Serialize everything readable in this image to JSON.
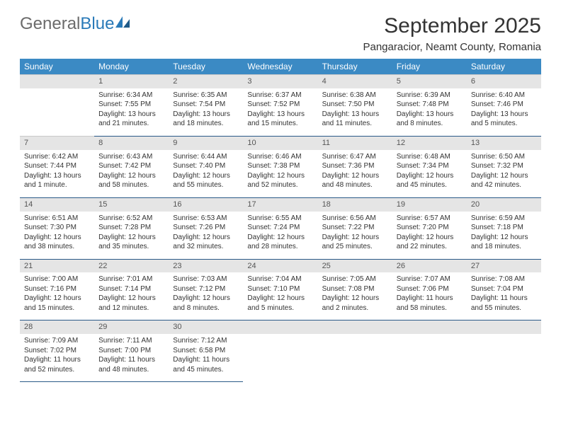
{
  "logo": {
    "part1": "General",
    "part2": "Blue"
  },
  "title": "September 2025",
  "location": "Pangaracior, Neamt County, Romania",
  "colors": {
    "header_bg": "#3b8ac4",
    "header_text": "#ffffff",
    "daynum_bg": "#e5e5e5",
    "border": "#2a5a88",
    "logo_gray": "#6b6b6b",
    "logo_blue": "#2a7ab8"
  },
  "day_headers": [
    "Sunday",
    "Monday",
    "Tuesday",
    "Wednesday",
    "Thursday",
    "Friday",
    "Saturday"
  ],
  "weeks": [
    {
      "nums": [
        "",
        "1",
        "2",
        "3",
        "4",
        "5",
        "6"
      ],
      "cells": [
        [],
        [
          "Sunrise: 6:34 AM",
          "Sunset: 7:55 PM",
          "Daylight: 13 hours",
          "and 21 minutes."
        ],
        [
          "Sunrise: 6:35 AM",
          "Sunset: 7:54 PM",
          "Daylight: 13 hours",
          "and 18 minutes."
        ],
        [
          "Sunrise: 6:37 AM",
          "Sunset: 7:52 PM",
          "Daylight: 13 hours",
          "and 15 minutes."
        ],
        [
          "Sunrise: 6:38 AM",
          "Sunset: 7:50 PM",
          "Daylight: 13 hours",
          "and 11 minutes."
        ],
        [
          "Sunrise: 6:39 AM",
          "Sunset: 7:48 PM",
          "Daylight: 13 hours",
          "and 8 minutes."
        ],
        [
          "Sunrise: 6:40 AM",
          "Sunset: 7:46 PM",
          "Daylight: 13 hours",
          "and 5 minutes."
        ]
      ]
    },
    {
      "nums": [
        "7",
        "8",
        "9",
        "10",
        "11",
        "12",
        "13"
      ],
      "cells": [
        [
          "Sunrise: 6:42 AM",
          "Sunset: 7:44 PM",
          "Daylight: 13 hours",
          "and 1 minute."
        ],
        [
          "Sunrise: 6:43 AM",
          "Sunset: 7:42 PM",
          "Daylight: 12 hours",
          "and 58 minutes."
        ],
        [
          "Sunrise: 6:44 AM",
          "Sunset: 7:40 PM",
          "Daylight: 12 hours",
          "and 55 minutes."
        ],
        [
          "Sunrise: 6:46 AM",
          "Sunset: 7:38 PM",
          "Daylight: 12 hours",
          "and 52 minutes."
        ],
        [
          "Sunrise: 6:47 AM",
          "Sunset: 7:36 PM",
          "Daylight: 12 hours",
          "and 48 minutes."
        ],
        [
          "Sunrise: 6:48 AM",
          "Sunset: 7:34 PM",
          "Daylight: 12 hours",
          "and 45 minutes."
        ],
        [
          "Sunrise: 6:50 AM",
          "Sunset: 7:32 PM",
          "Daylight: 12 hours",
          "and 42 minutes."
        ]
      ]
    },
    {
      "nums": [
        "14",
        "15",
        "16",
        "17",
        "18",
        "19",
        "20"
      ],
      "cells": [
        [
          "Sunrise: 6:51 AM",
          "Sunset: 7:30 PM",
          "Daylight: 12 hours",
          "and 38 minutes."
        ],
        [
          "Sunrise: 6:52 AM",
          "Sunset: 7:28 PM",
          "Daylight: 12 hours",
          "and 35 minutes."
        ],
        [
          "Sunrise: 6:53 AM",
          "Sunset: 7:26 PM",
          "Daylight: 12 hours",
          "and 32 minutes."
        ],
        [
          "Sunrise: 6:55 AM",
          "Sunset: 7:24 PM",
          "Daylight: 12 hours",
          "and 28 minutes."
        ],
        [
          "Sunrise: 6:56 AM",
          "Sunset: 7:22 PM",
          "Daylight: 12 hours",
          "and 25 minutes."
        ],
        [
          "Sunrise: 6:57 AM",
          "Sunset: 7:20 PM",
          "Daylight: 12 hours",
          "and 22 minutes."
        ],
        [
          "Sunrise: 6:59 AM",
          "Sunset: 7:18 PM",
          "Daylight: 12 hours",
          "and 18 minutes."
        ]
      ]
    },
    {
      "nums": [
        "21",
        "22",
        "23",
        "24",
        "25",
        "26",
        "27"
      ],
      "cells": [
        [
          "Sunrise: 7:00 AM",
          "Sunset: 7:16 PM",
          "Daylight: 12 hours",
          "and 15 minutes."
        ],
        [
          "Sunrise: 7:01 AM",
          "Sunset: 7:14 PM",
          "Daylight: 12 hours",
          "and 12 minutes."
        ],
        [
          "Sunrise: 7:03 AM",
          "Sunset: 7:12 PM",
          "Daylight: 12 hours",
          "and 8 minutes."
        ],
        [
          "Sunrise: 7:04 AM",
          "Sunset: 7:10 PM",
          "Daylight: 12 hours",
          "and 5 minutes."
        ],
        [
          "Sunrise: 7:05 AM",
          "Sunset: 7:08 PM",
          "Daylight: 12 hours",
          "and 2 minutes."
        ],
        [
          "Sunrise: 7:07 AM",
          "Sunset: 7:06 PM",
          "Daylight: 11 hours",
          "and 58 minutes."
        ],
        [
          "Sunrise: 7:08 AM",
          "Sunset: 7:04 PM",
          "Daylight: 11 hours",
          "and 55 minutes."
        ]
      ]
    },
    {
      "nums": [
        "28",
        "29",
        "30",
        "",
        "",
        "",
        ""
      ],
      "cells": [
        [
          "Sunrise: 7:09 AM",
          "Sunset: 7:02 PM",
          "Daylight: 11 hours",
          "and 52 minutes."
        ],
        [
          "Sunrise: 7:11 AM",
          "Sunset: 7:00 PM",
          "Daylight: 11 hours",
          "and 48 minutes."
        ],
        [
          "Sunrise: 7:12 AM",
          "Sunset: 6:58 PM",
          "Daylight: 11 hours",
          "and 45 minutes."
        ],
        [],
        [],
        [],
        []
      ]
    }
  ]
}
